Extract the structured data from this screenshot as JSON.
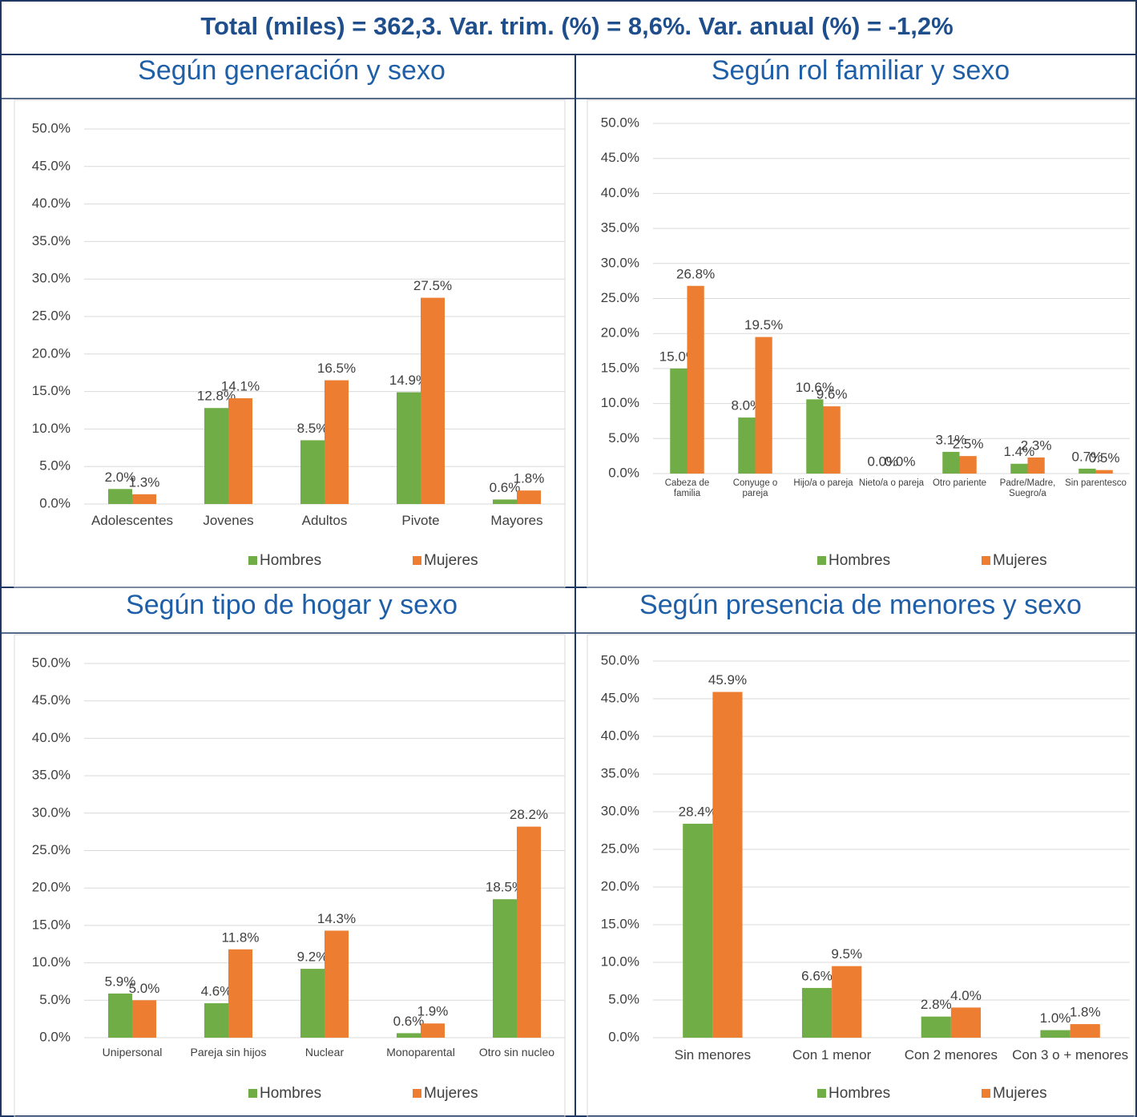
{
  "title": "Total (miles) = 362,3. Var. trim. (%) = 8,6%. Var. anual (%) = -1,2%",
  "chart_data": [
    {
      "type": "bar",
      "title": "Según generación y sexo",
      "categories": [
        "Adolescentes",
        "Jovenes",
        "Adultos",
        "Pivote",
        "Mayores"
      ],
      "series": [
        {
          "name": "Hombres",
          "color": "#70ad47",
          "values": [
            2.0,
            12.8,
            8.5,
            14.9,
            0.6
          ],
          "value_labels": [
            "2.0%",
            "12.8%",
            "8.5%",
            "14.9%",
            "0.6%"
          ]
        },
        {
          "name": "Mujeres",
          "color": "#ed7d31",
          "values": [
            1.3,
            14.1,
            16.5,
            27.5,
            1.8
          ],
          "value_labels": [
            "1.3%",
            "14.1%",
            "16.5%",
            "27.5%",
            "1.8%"
          ]
        }
      ],
      "ylim": [
        0,
        50
      ],
      "yticks": [
        {
          "value": 0,
          "label": "0.0%"
        },
        {
          "value": 5,
          "label": "5.0%"
        },
        {
          "value": 10,
          "label": "10.0%"
        },
        {
          "value": 15,
          "label": "15.0%"
        },
        {
          "value": 20,
          "label": "20.0%"
        },
        {
          "value": 25,
          "label": "25.0%"
        },
        {
          "value": 30,
          "label": "30.0%"
        },
        {
          "value": 35,
          "label": "35.0%"
        },
        {
          "value": 40,
          "label": "40.0%"
        },
        {
          "value": 45,
          "label": "45.0%"
        },
        {
          "value": 50,
          "label": "50.0%"
        }
      ],
      "grid": true,
      "legend": "bottom"
    },
    {
      "type": "bar",
      "title": "Según rol familiar y sexo",
      "categories": [
        "Cabeza de familia",
        "Conyuge o pareja",
        "Hijo/a o pareja",
        "Nieto/a o pareja",
        "Otro pariente",
        "Padre/Madre, Suegro/a",
        "Sin parentesco"
      ],
      "series": [
        {
          "name": "Hombres",
          "color": "#70ad47",
          "values": [
            15.0,
            8.0,
            10.6,
            0.0,
            3.1,
            1.4,
            0.7
          ],
          "value_labels": [
            "15.0%",
            "8.0%",
            "10.6%",
            "0.0%",
            "3.1%",
            "1.4%",
            "0.7%"
          ]
        },
        {
          "name": "Mujeres",
          "color": "#ed7d31",
          "values": [
            26.8,
            19.5,
            9.6,
            0.0,
            2.5,
            2.3,
            0.5
          ],
          "value_labels": [
            "26.8%",
            "19.5%",
            "9.6%",
            "0.0%",
            "2.5%",
            "2.3%",
            "0.5%"
          ]
        }
      ],
      "ylim": [
        0,
        50
      ],
      "yticks": [
        {
          "value": 0,
          "label": "0.0%"
        },
        {
          "value": 5,
          "label": "5.0%"
        },
        {
          "value": 10,
          "label": "10.0%"
        },
        {
          "value": 15,
          "label": "15.0%"
        },
        {
          "value": 20,
          "label": "20.0%"
        },
        {
          "value": 25,
          "label": "25.0%"
        },
        {
          "value": 30,
          "label": "30.0%"
        },
        {
          "value": 35,
          "label": "35.0%"
        },
        {
          "value": 40,
          "label": "40.0%"
        },
        {
          "value": 45,
          "label": "45.0%"
        },
        {
          "value": 50,
          "label": "50.0%"
        }
      ],
      "grid": true,
      "legend": "bottom"
    },
    {
      "type": "bar",
      "title": "Según tipo de hogar y sexo",
      "categories": [
        "Unipersonal",
        "Pareja sin hijos",
        "Nuclear",
        "Monoparental",
        "Otro sin nucleo"
      ],
      "series": [
        {
          "name": "Hombres",
          "color": "#70ad47",
          "values": [
            5.9,
            4.6,
            9.2,
            0.6,
            18.5
          ],
          "value_labels": [
            "5.9%",
            "4.6%",
            "9.2%",
            "0.6%",
            "18.5%"
          ]
        },
        {
          "name": "Mujeres",
          "color": "#ed7d31",
          "values": [
            5.0,
            11.8,
            14.3,
            1.9,
            28.2
          ],
          "value_labels": [
            "5.0%",
            "11.8%",
            "14.3%",
            "1.9%",
            "28.2%"
          ]
        }
      ],
      "ylim": [
        0,
        50
      ],
      "yticks": [
        {
          "value": 0,
          "label": "0.0%"
        },
        {
          "value": 5,
          "label": "5.0%"
        },
        {
          "value": 10,
          "label": "10.0%"
        },
        {
          "value": 15,
          "label": "15.0%"
        },
        {
          "value": 20,
          "label": "20.0%"
        },
        {
          "value": 25,
          "label": "25.0%"
        },
        {
          "value": 30,
          "label": "30.0%"
        },
        {
          "value": 35,
          "label": "35.0%"
        },
        {
          "value": 40,
          "label": "40.0%"
        },
        {
          "value": 45,
          "label": "45.0%"
        },
        {
          "value": 50,
          "label": "50.0%"
        }
      ],
      "grid": true,
      "legend": "bottom"
    },
    {
      "type": "bar",
      "title": "Según presencia de menores y sexo",
      "categories": [
        "Sin menores",
        "Con 1 menor",
        "Con 2 menores",
        "Con 3 o + menores"
      ],
      "series": [
        {
          "name": "Hombres",
          "color": "#70ad47",
          "values": [
            28.4,
            6.6,
            2.8,
            1.0
          ],
          "value_labels": [
            "28.4%",
            "6.6%",
            "2.8%",
            "1.0%"
          ]
        },
        {
          "name": "Mujeres",
          "color": "#ed7d31",
          "values": [
            45.9,
            9.5,
            4.0,
            1.8
          ],
          "value_labels": [
            "45.9%",
            "9.5%",
            "4.0%",
            "1.8%"
          ]
        }
      ],
      "ylim": [
        0,
        50
      ],
      "yticks": [
        {
          "value": 0,
          "label": "0.0%"
        },
        {
          "value": 5,
          "label": "5.0%"
        },
        {
          "value": 10,
          "label": "10.0%"
        },
        {
          "value": 15,
          "label": "15.0%"
        },
        {
          "value": 20,
          "label": "20.0%"
        },
        {
          "value": 25,
          "label": "25.0%"
        },
        {
          "value": 30,
          "label": "30.0%"
        },
        {
          "value": 35,
          "label": "35.0%"
        },
        {
          "value": 40,
          "label": "40.0%"
        },
        {
          "value": 45,
          "label": "45.0%"
        },
        {
          "value": 50,
          "label": "50.0%"
        }
      ],
      "grid": true,
      "legend": "bottom"
    }
  ]
}
